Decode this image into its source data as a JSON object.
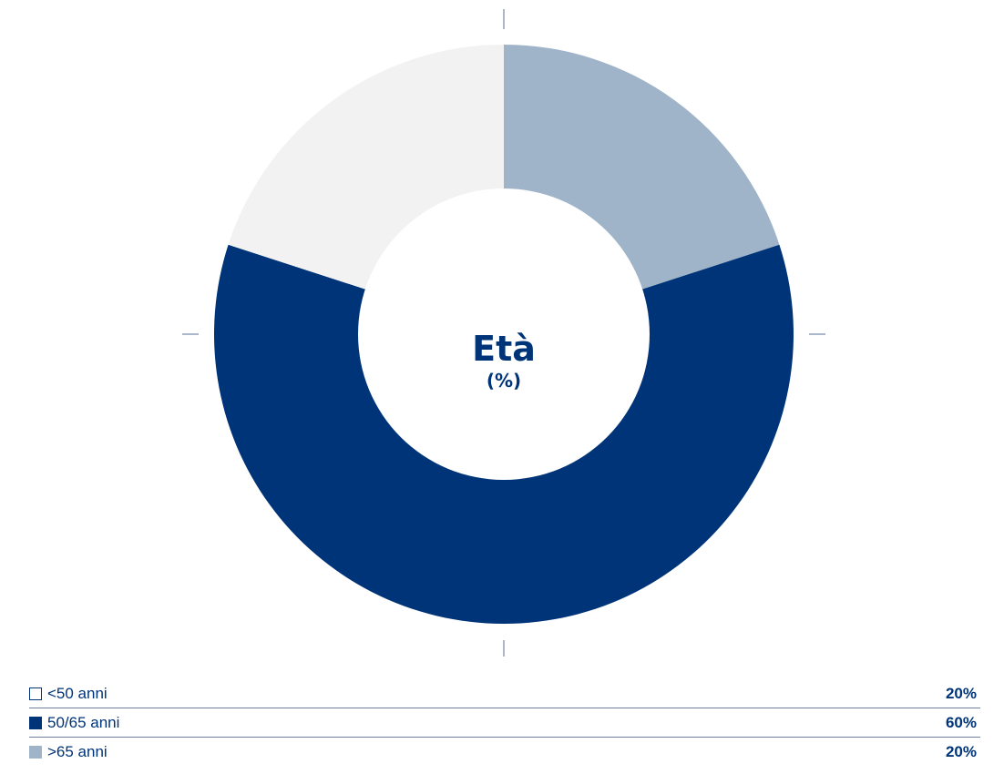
{
  "chart_data": {
    "type": "pie",
    "title": "Età",
    "subtitle": "(%)",
    "slices": [
      {
        "label": "<50 anni",
        "value": 20,
        "display": "20%",
        "color": "#f2f2f2",
        "swatch_border": "#003478"
      },
      {
        "label": "50/65 anni",
        "value": 60,
        "display": "60%",
        "color": "#003478",
        "swatch_border": "#003478"
      },
      {
        "label": ">65 anni",
        "value": 20,
        "display": "20%",
        "color": "#9fb4c9",
        "swatch_border": "#9fb4c9"
      }
    ],
    "legend_position": "bottom",
    "colors": {
      "text": "#003478",
      "tick": "#8d9fb8",
      "divider": "#6f7f9c"
    }
  }
}
